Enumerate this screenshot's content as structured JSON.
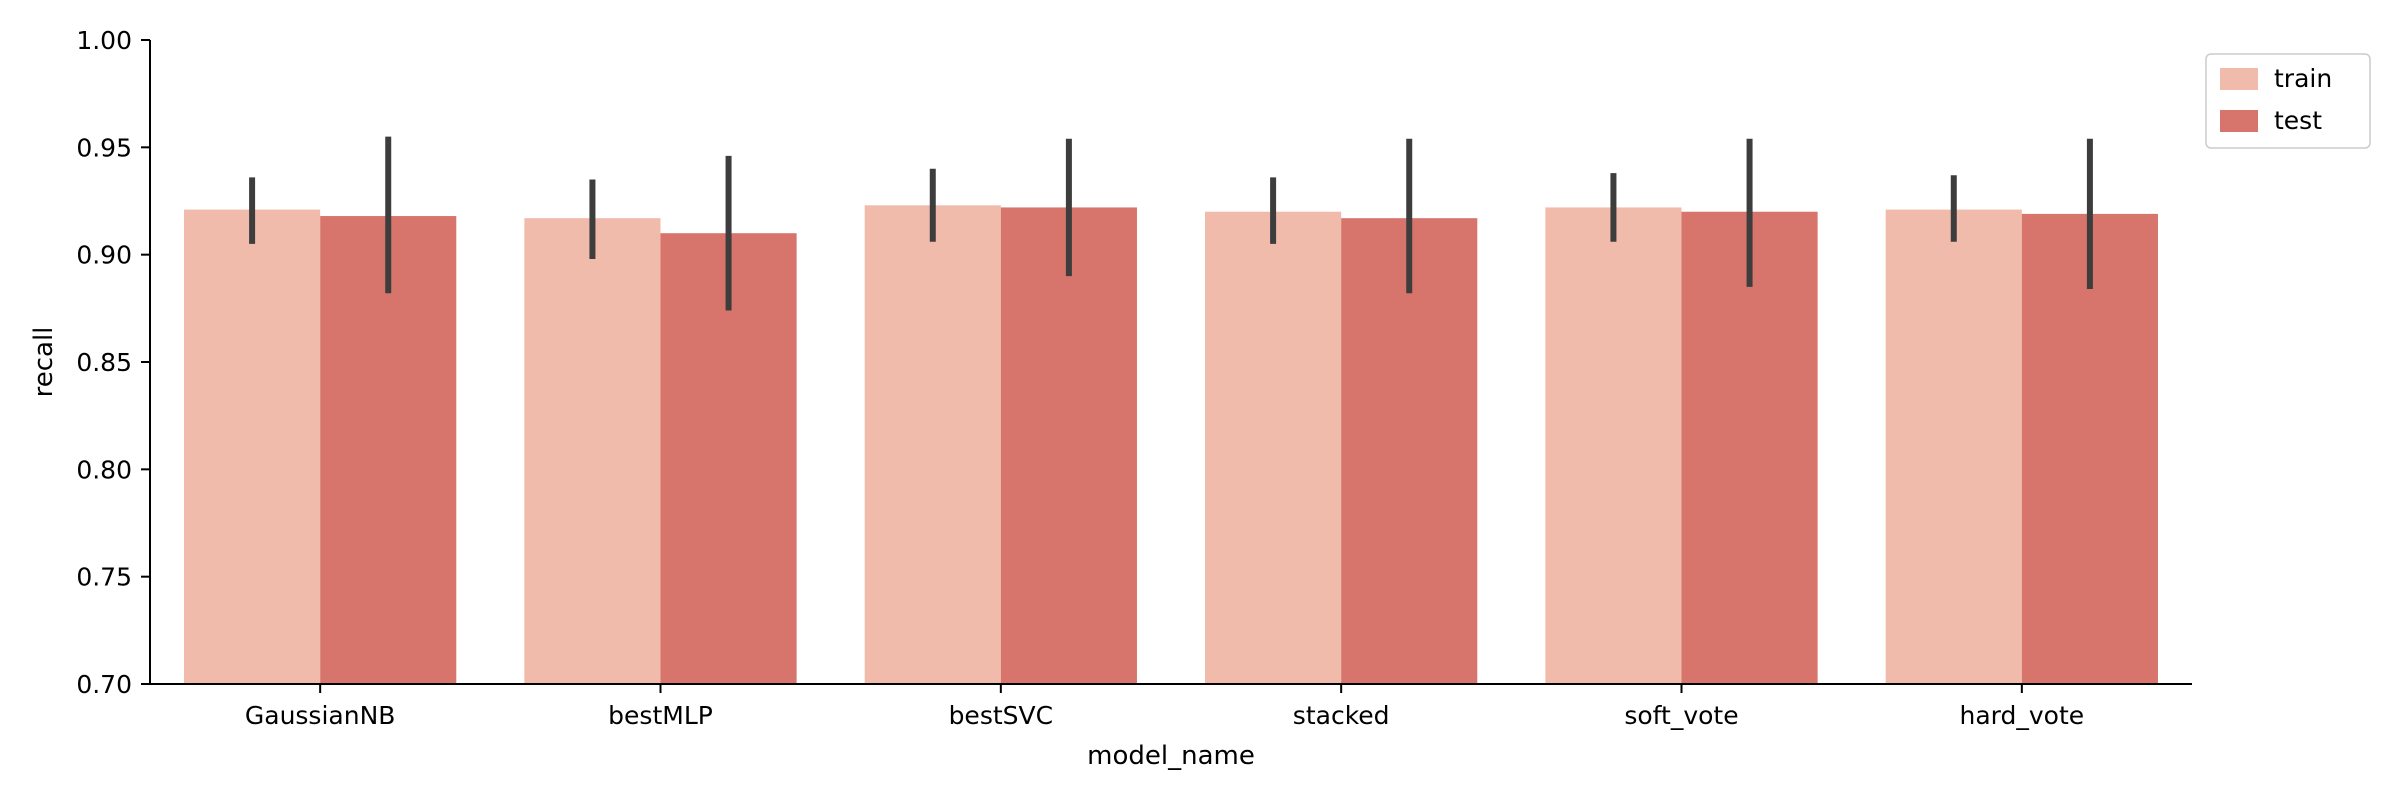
{
  "chart_data": {
    "type": "bar",
    "xlabel": "model_name",
    "ylabel": "recall",
    "ylim": [
      0.7,
      1.0
    ],
    "yticks": [
      "0.70",
      "0.75",
      "0.80",
      "0.85",
      "0.90",
      "0.95",
      "1.00"
    ],
    "categories": [
      "GaussianNB",
      "bestMLP",
      "bestSVC",
      "stacked",
      "soft_vote",
      "hard_vote"
    ],
    "series": [
      {
        "name": "train",
        "color": "#f0bbaa",
        "values": [
          0.921,
          0.917,
          0.923,
          0.92,
          0.922,
          0.921
        ],
        "err_low": [
          0.905,
          0.898,
          0.906,
          0.905,
          0.906,
          0.906
        ],
        "err_high": [
          0.936,
          0.935,
          0.94,
          0.936,
          0.938,
          0.937
        ]
      },
      {
        "name": "test",
        "color": "#d7756c",
        "values": [
          0.918,
          0.91,
          0.922,
          0.917,
          0.92,
          0.919
        ],
        "err_low": [
          0.882,
          0.874,
          0.89,
          0.882,
          0.885,
          0.884
        ],
        "err_high": [
          0.955,
          0.946,
          0.954,
          0.954,
          0.954,
          0.954
        ]
      }
    ],
    "errorbar_color": "#3d3d3d",
    "grid": false,
    "legend_position": "upper-right-outside"
  }
}
